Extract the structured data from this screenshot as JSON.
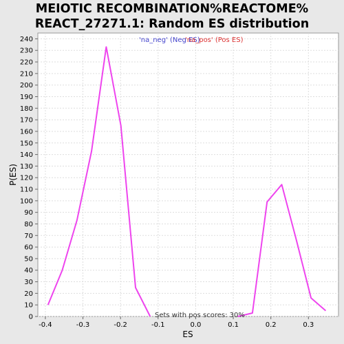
{
  "chart_data": {
    "type": "line",
    "title_lines": [
      "MEIOTIC RECOMBINATION%REACTOME%",
      "REACT_27271.1: Random ES distribution"
    ],
    "xlabel": "ES",
    "ylabel": "P(ES)",
    "xlim": [
      -0.42,
      0.38
    ],
    "ylim": [
      0,
      245
    ],
    "x_ticks": [
      -0.4,
      -0.3,
      -0.2,
      -0.1,
      0.0,
      0.1,
      0.2,
      0.3
    ],
    "x_tick_labels": [
      "-0.4",
      "-0.3",
      "-0.2",
      "-0.1",
      "0.0",
      "0.1",
      "0.2",
      "0.3"
    ],
    "y_ticks": [
      0,
      10,
      20,
      30,
      40,
      50,
      60,
      70,
      80,
      90,
      100,
      110,
      120,
      130,
      140,
      150,
      160,
      170,
      180,
      190,
      200,
      210,
      220,
      230,
      240
    ],
    "y_tick_labels": [
      "0",
      "10",
      "20",
      "30",
      "40",
      "50",
      "60",
      "70",
      "80",
      "90",
      "100",
      "110",
      "120",
      "130",
      "140",
      "150",
      "160",
      "170",
      "180",
      "190",
      "200",
      "210",
      "220",
      "230",
      "240"
    ],
    "grid": true,
    "legend": [
      {
        "label": "'na_neg' (Neg ES)",
        "color": "#4444cc"
      },
      {
        "label": "'na_pos' (Pos ES)",
        "color": "#dd3333"
      }
    ],
    "series": [
      {
        "color": "#ee44ee",
        "x": [
          -0.393,
          -0.355,
          -0.316,
          -0.277,
          -0.238,
          -0.199,
          -0.16,
          -0.121
        ],
        "y": [
          10,
          40,
          83,
          143,
          233,
          165,
          25,
          0
        ]
      },
      {
        "color": "#ee44ee",
        "x": [
          0.112,
          0.151,
          0.19,
          0.229,
          0.268,
          0.307,
          0.346
        ],
        "y": [
          0,
          3,
          99,
          114,
          66,
          16,
          5
        ]
      }
    ],
    "annotation": "Sets with pos scores: 30%"
  }
}
